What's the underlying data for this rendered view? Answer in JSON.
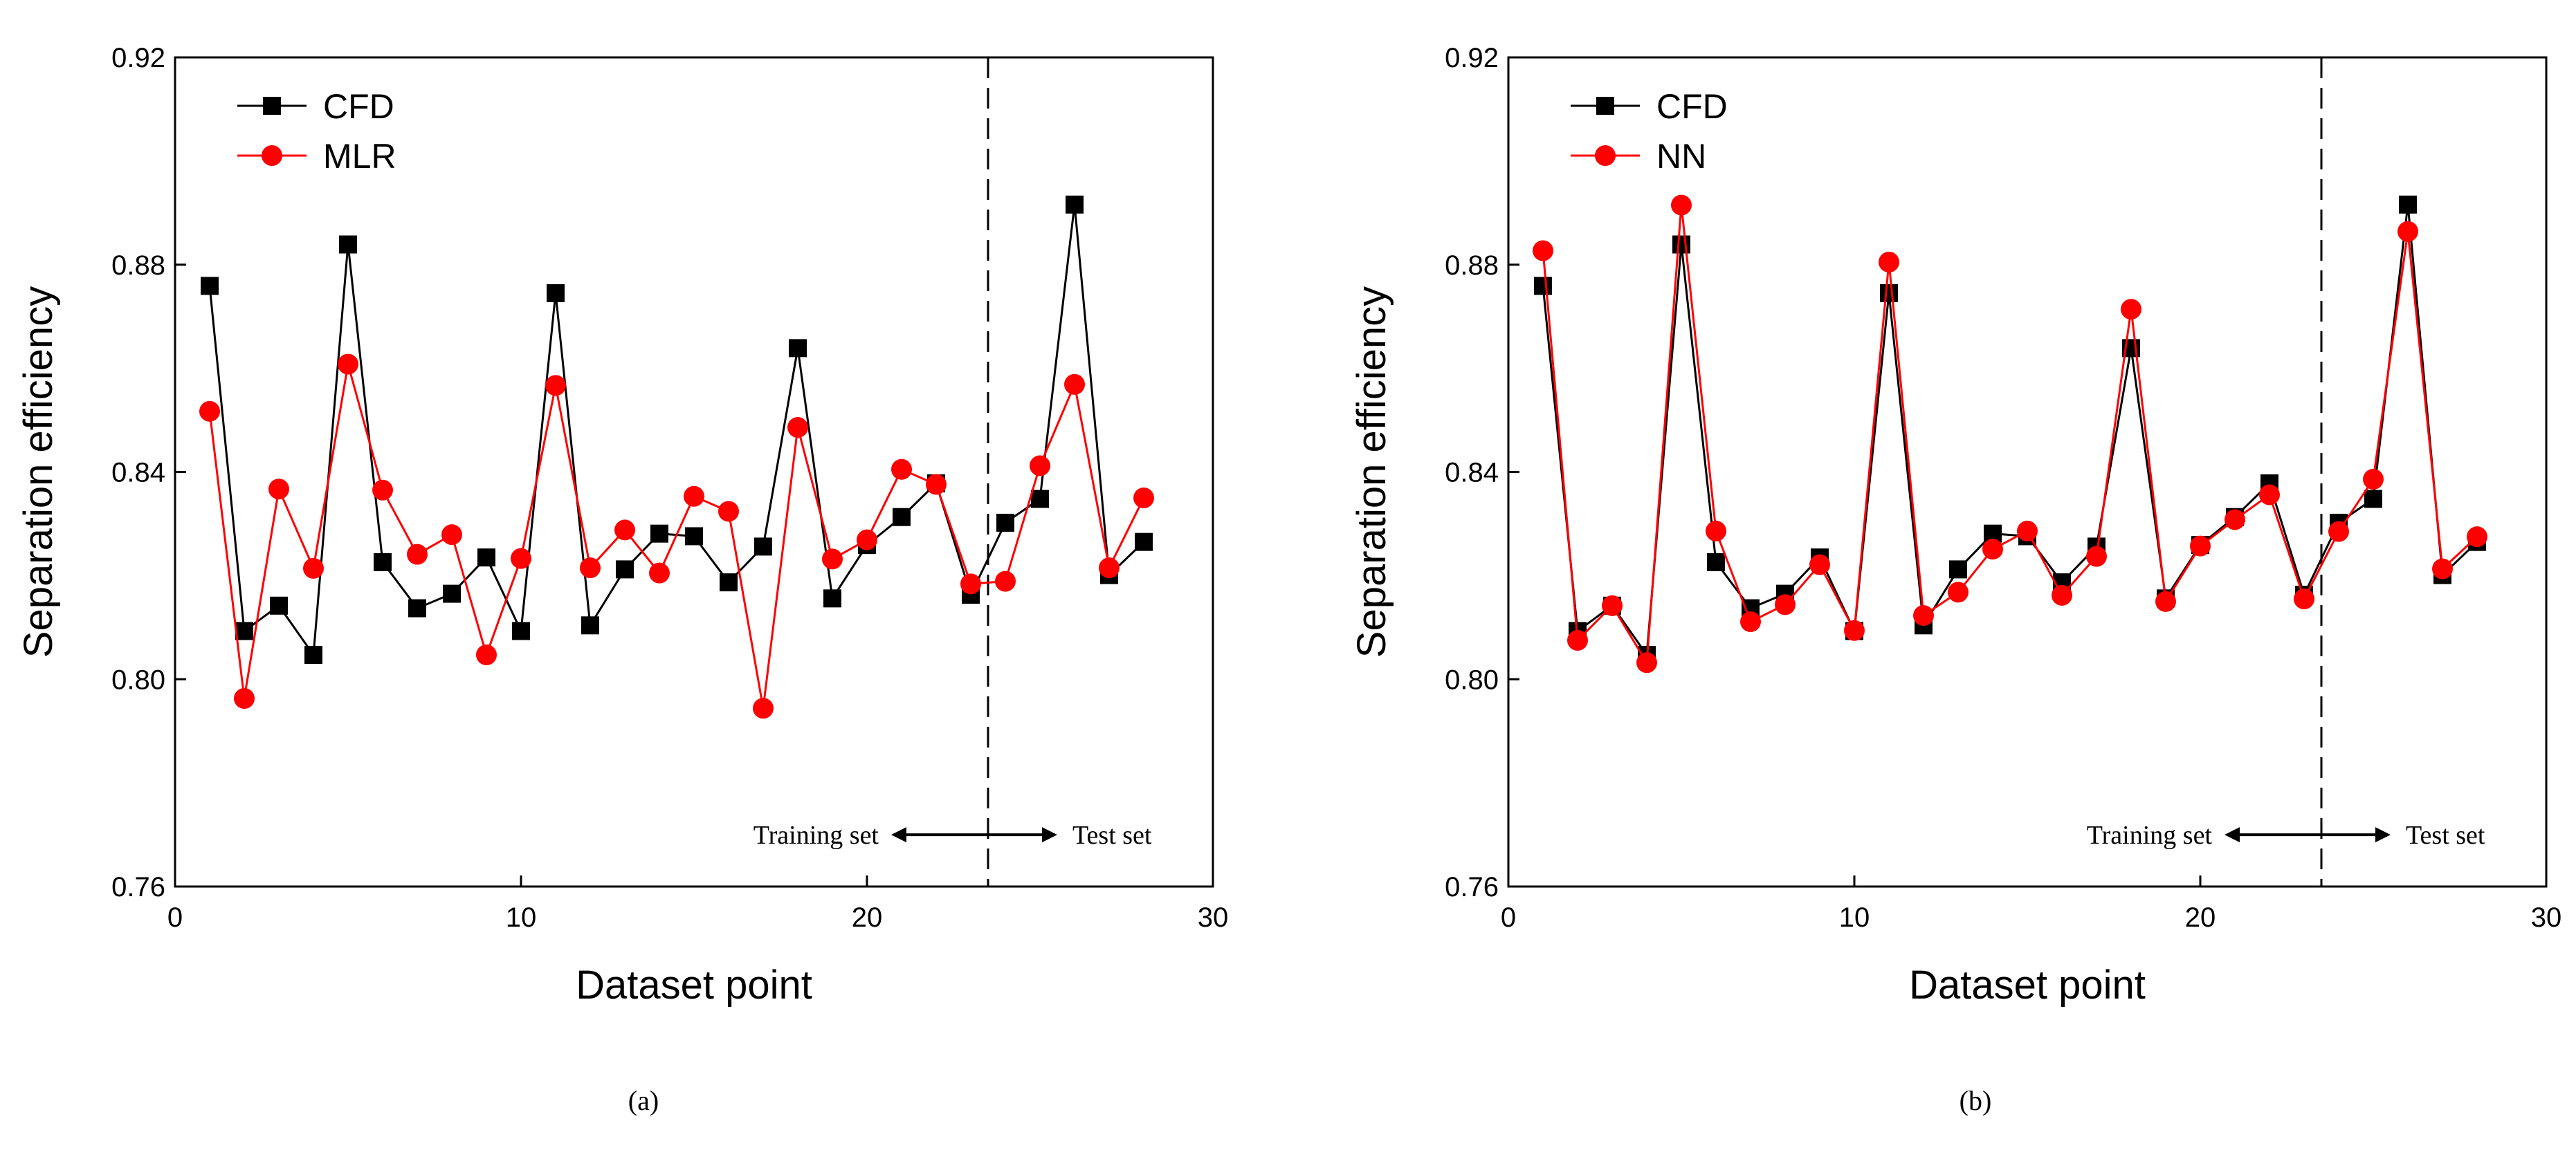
{
  "chart_data": [
    {
      "type": "line",
      "panel_label": "(a)",
      "xlabel": "Dataset point",
      "ylabel": "Separation efficiency",
      "xlim": [
        0,
        30
      ],
      "ylim": [
        0.76,
        0.92
      ],
      "xticks": [
        0,
        10,
        20,
        30
      ],
      "yticks": [
        0.76,
        0.8,
        0.84,
        0.88,
        0.92
      ],
      "ytick_labels": [
        "0.76",
        "0.80",
        "0.84",
        "0.88",
        "0.92"
      ],
      "legend_position": "top-left",
      "split_x": 23.5,
      "annotations": {
        "training": "Training set",
        "test": "Test set"
      },
      "series": [
        {
          "name": "CFD",
          "color": "#000000",
          "marker": "square",
          "x": [
            1,
            2,
            3,
            4,
            5,
            6,
            7,
            8,
            9,
            10,
            11,
            12,
            13,
            14,
            15,
            16,
            17,
            18,
            19,
            20,
            21,
            22,
            23,
            24,
            25,
            26,
            27,
            28
          ],
          "values": [
            0.8759,
            0.8093,
            0.8142,
            0.8047,
            0.8839,
            0.8226,
            0.8137,
            0.8165,
            0.8235,
            0.8093,
            0.8745,
            0.8104,
            0.8212,
            0.8281,
            0.8276,
            0.8187,
            0.8256,
            0.8639,
            0.8156,
            0.8259,
            0.8313,
            0.8378,
            0.8163,
            0.8302,
            0.8348,
            0.8916,
            0.8201,
            0.8265
          ]
        },
        {
          "name": "MLR",
          "color": "#ff0000",
          "marker": "circle",
          "x": [
            1,
            2,
            3,
            4,
            5,
            6,
            7,
            8,
            9,
            10,
            11,
            12,
            13,
            14,
            15,
            16,
            17,
            18,
            19,
            20,
            21,
            22,
            23,
            24,
            25,
            26,
            27,
            28
          ],
          "values": [
            0.8517,
            0.7963,
            0.8367,
            0.8214,
            0.8608,
            0.8365,
            0.8241,
            0.8279,
            0.8047,
            0.8233,
            0.8567,
            0.8215,
            0.8288,
            0.8205,
            0.8353,
            0.8324,
            0.7944,
            0.8486,
            0.8232,
            0.8269,
            0.8405,
            0.8376,
            0.8184,
            0.8189,
            0.8412,
            0.8569,
            0.8215,
            0.835
          ]
        }
      ]
    },
    {
      "type": "line",
      "panel_label": "(b)",
      "xlabel": "Dataset point",
      "ylabel": "Separation efficiency",
      "xlim": [
        0,
        30
      ],
      "ylim": [
        0.76,
        0.92
      ],
      "xticks": [
        0,
        10,
        20,
        30
      ],
      "yticks": [
        0.76,
        0.8,
        0.84,
        0.88,
        0.92
      ],
      "ytick_labels": [
        "0.76",
        "0.80",
        "0.84",
        "0.88",
        "0.92"
      ],
      "legend_position": "top-left",
      "split_x": 23.5,
      "annotations": {
        "training": "Training set",
        "test": "Test set"
      },
      "series": [
        {
          "name": "CFD",
          "color": "#000000",
          "marker": "square",
          "x": [
            1,
            2,
            3,
            4,
            5,
            6,
            7,
            8,
            9,
            10,
            11,
            12,
            13,
            14,
            15,
            16,
            17,
            18,
            19,
            20,
            21,
            22,
            23,
            24,
            25,
            26,
            27,
            28
          ],
          "values": [
            0.8759,
            0.8093,
            0.8142,
            0.8047,
            0.8839,
            0.8226,
            0.8137,
            0.8165,
            0.8235,
            0.8093,
            0.8745,
            0.8104,
            0.8212,
            0.8281,
            0.8276,
            0.8187,
            0.8256,
            0.8639,
            0.8156,
            0.8259,
            0.8313,
            0.8378,
            0.8163,
            0.8302,
            0.8348,
            0.8916,
            0.8201,
            0.8265
          ]
        },
        {
          "name": "NN",
          "color": "#ff0000",
          "marker": "circle",
          "x": [
            1,
            2,
            3,
            4,
            5,
            6,
            7,
            8,
            9,
            10,
            11,
            12,
            13,
            14,
            15,
            16,
            17,
            18,
            19,
            20,
            21,
            22,
            23,
            24,
            25,
            26,
            27,
            28
          ],
          "values": [
            0.8827,
            0.8075,
            0.8142,
            0.8032,
            0.8915,
            0.8286,
            0.8111,
            0.8144,
            0.8221,
            0.8094,
            0.8805,
            0.8123,
            0.8168,
            0.8251,
            0.8286,
            0.8162,
            0.8237,
            0.8714,
            0.815,
            0.8257,
            0.8308,
            0.8356,
            0.8155,
            0.8285,
            0.8386,
            0.8864,
            0.8213,
            0.8275
          ]
        }
      ]
    }
  ]
}
